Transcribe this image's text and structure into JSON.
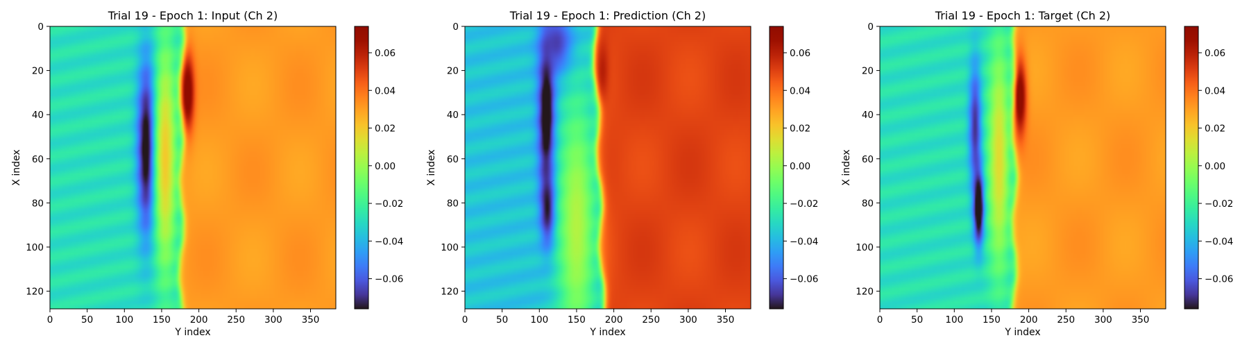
{
  "chart_data": [
    {
      "type": "heatmap",
      "title": "Trial 19 - Epoch 1: Input (Ch 2)",
      "xlabel": "Y index",
      "ylabel": "X index",
      "xlim": [
        0,
        384
      ],
      "ylim": [
        128,
        0
      ],
      "x_ticks": [
        0,
        50,
        100,
        150,
        200,
        250,
        300,
        350
      ],
      "y_ticks": [
        0,
        20,
        40,
        60,
        80,
        100,
        120
      ],
      "colormap": "turbo",
      "colorbar": {
        "vmin": -0.076,
        "vmax": 0.074,
        "ticks": [
          "0.06",
          "0.04",
          "0.02",
          "0.00",
          "−0.02",
          "−0.04",
          "−0.06"
        ],
        "tick_values": [
          0.06,
          0.04,
          0.02,
          0.0,
          -0.02,
          -0.04,
          -0.06
        ]
      },
      "field": {
        "background_left": -0.028,
        "background_right": 0.031,
        "front_y_at_x0": 178,
        "front_y_at_x128": 176,
        "blobs": [
          {
            "y": 130,
            "x": 55,
            "sy": 9,
            "sx": 28,
            "value": -0.085
          },
          {
            "y": 185,
            "x": 30,
            "sy": 6,
            "sx": 12,
            "value": 0.08
          },
          {
            "y": 155,
            "x": 60,
            "sy": 10,
            "sx": 35,
            "value": 0.02
          }
        ]
      }
    },
    {
      "type": "heatmap",
      "title": "Trial 19 - Epoch 1: Prediction (Ch 2)",
      "xlabel": "Y index",
      "ylabel": "X index",
      "xlim": [
        0,
        384
      ],
      "ylim": [
        128,
        0
      ],
      "x_ticks": [
        0,
        50,
        100,
        150,
        200,
        250,
        300,
        350
      ],
      "y_ticks": [
        0,
        20,
        40,
        60,
        80,
        100,
        120
      ],
      "colormap": "turbo",
      "colorbar": {
        "vmin": -0.076,
        "vmax": 0.074,
        "ticks": [
          "0.06",
          "0.04",
          "0.02",
          "0.00",
          "−0.02",
          "−0.04",
          "−0.06"
        ],
        "tick_values": [
          0.06,
          0.04,
          0.02,
          0.0,
          -0.02,
          -0.04,
          -0.06
        ]
      },
      "field": {
        "background_left": -0.036,
        "background_right": 0.05,
        "front_y_at_x0": 175,
        "front_y_at_x128": 185,
        "blobs": [
          {
            "y": 110,
            "x": 40,
            "sy": 8,
            "sx": 25,
            "value": -0.09
          },
          {
            "y": 112,
            "x": 82,
            "sy": 7,
            "sx": 12,
            "value": -0.085
          },
          {
            "y": 125,
            "x": 8,
            "sy": 15,
            "sx": 10,
            "value": -0.07
          },
          {
            "y": 150,
            "x": 90,
            "sy": 18,
            "sx": 40,
            "value": 0.005
          },
          {
            "y": 185,
            "x": 20,
            "sy": 6,
            "sx": 10,
            "value": 0.06
          }
        ]
      }
    },
    {
      "type": "heatmap",
      "title": "Trial 19 - Epoch 1: Target (Ch 2)",
      "xlabel": "Y index",
      "ylabel": "X index",
      "xlim": [
        0,
        384
      ],
      "ylim": [
        128,
        0
      ],
      "x_ticks": [
        0,
        50,
        100,
        150,
        200,
        250,
        300,
        350
      ],
      "y_ticks": [
        0,
        20,
        40,
        60,
        80,
        100,
        120
      ],
      "colormap": "turbo",
      "colorbar": {
        "vmin": -0.076,
        "vmax": 0.074,
        "ticks": [
          "0.06",
          "0.04",
          "0.02",
          "0.00",
          "−0.02",
          "−0.04",
          "−0.06"
        ],
        "tick_values": [
          0.06,
          0.04,
          0.02,
          0.0,
          -0.02,
          -0.04,
          -0.06
        ]
      },
      "field": {
        "background_left": -0.028,
        "background_right": 0.031,
        "front_y_at_x0": 182,
        "front_y_at_x128": 180,
        "blobs": [
          {
            "y": 128,
            "x": 45,
            "sy": 6,
            "sx": 20,
            "value": -0.07
          },
          {
            "y": 133,
            "x": 82,
            "sy": 5,
            "sx": 12,
            "value": -0.095
          },
          {
            "y": 188,
            "x": 32,
            "sy": 6,
            "sx": 12,
            "value": 0.08
          },
          {
            "y": 160,
            "x": 60,
            "sy": 10,
            "sx": 35,
            "value": 0.015
          }
        ]
      }
    }
  ]
}
